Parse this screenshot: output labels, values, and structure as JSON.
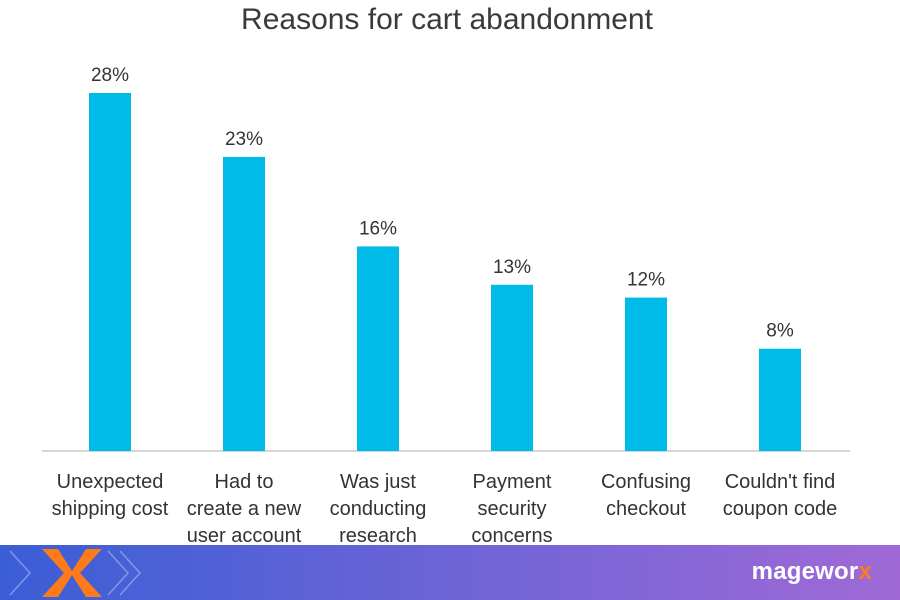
{
  "chart_data": {
    "type": "bar",
    "title": "Reasons for cart abandonment",
    "categories": [
      [
        "Unexpected",
        "shipping cost"
      ],
      [
        "Had to",
        "create a new",
        "user account"
      ],
      [
        "Was just",
        "conducting",
        "research"
      ],
      [
        "Payment",
        "security",
        "concerns"
      ],
      [
        "Confusing",
        "checkout"
      ],
      [
        "Couldn't find",
        "coupon code"
      ]
    ],
    "values": [
      28,
      23,
      16,
      13,
      12,
      8
    ],
    "value_labels": [
      "28%",
      "23%",
      "16%",
      "13%",
      "12%",
      "8%"
    ],
    "unit": "%",
    "ylim": [
      0,
      28
    ],
    "grid": false,
    "legend": "none",
    "xlabel": "",
    "ylabel": "",
    "bar_color": "#00bbe7",
    "axis_color": "#c8c8c8"
  },
  "footer": {
    "brand_main": "magewor",
    "brand_accent": "x",
    "gradient_start": "#3a5ed6",
    "gradient_end": "#a06ad6",
    "logo_color": "#ff7a1a"
  }
}
